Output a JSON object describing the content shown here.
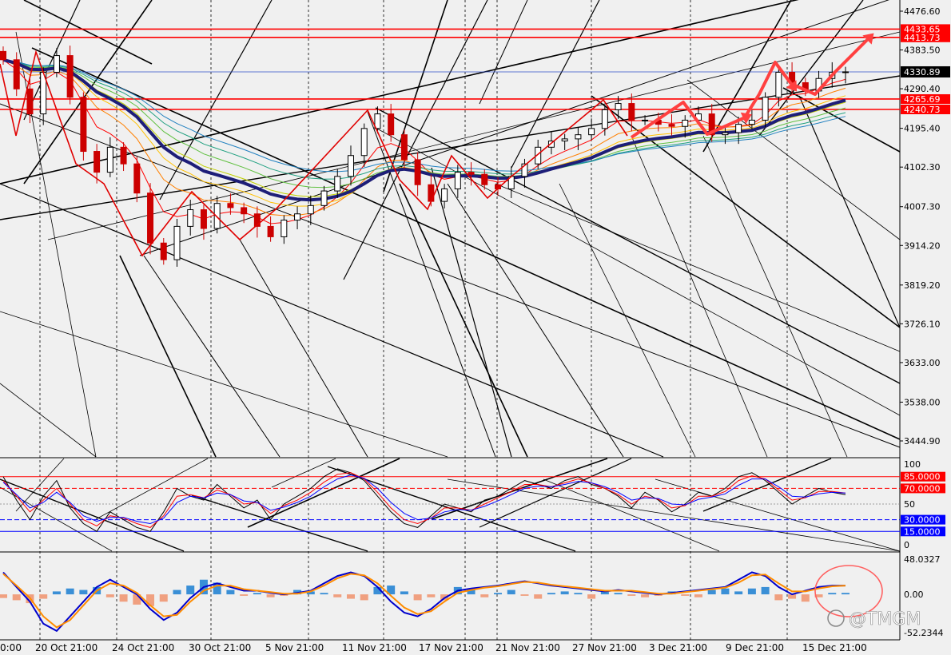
{
  "watermark": "@TMGM",
  "chart_data": [
    {
      "type": "candlestick",
      "panel": "price",
      "ylim": [
        3400,
        4500
      ],
      "y_ticks": [
        "4476.60",
        "4383.50",
        "4290.40",
        "4195.40",
        "4102.30",
        "4007.30",
        "3914.20",
        "3819.20",
        "3726.10",
        "3633.00",
        "3538.00",
        "3444.90"
      ],
      "x_ticks": [
        "20 Oct 21:00",
        "24 Oct 21:00",
        "30 Oct 21:00",
        "5 Nov 21:00",
        "11 Nov 21:00",
        "17 Nov 21:00",
        "21 Nov 21:00",
        "27 Nov 21:00",
        "3 Dec 21:00",
        "9 Dec 21:00",
        "15 Dec 21:00"
      ],
      "x_tick_start": "0:00",
      "horizontal_levels": [
        {
          "label": "4433.65",
          "value": 4433.65,
          "color": "#ff0000"
        },
        {
          "label": "4413.73",
          "value": 4413.73,
          "color": "#ff0000"
        },
        {
          "label": "4265.69",
          "value": 4265.69,
          "color": "#ff0000"
        },
        {
          "label": "4240.73",
          "value": 4240.73,
          "color": "#ff0000"
        }
      ],
      "current_price": {
        "label": "4330.89",
        "value": 4330.89
      },
      "close_series": [
        4360,
        4290,
        4230,
        4330,
        4370,
        4270,
        4140,
        4090,
        4150,
        4110,
        4040,
        3920,
        3880,
        3960,
        4000,
        3955,
        4015,
        4005,
        3990,
        3960,
        3935,
        3975,
        3990,
        4010,
        4045,
        4080,
        4130,
        4195,
        4230,
        4180,
        4120,
        4060,
        4020,
        4050,
        4090,
        4085,
        4060,
        4050,
        4080,
        4110,
        4150,
        4165,
        4170,
        4180,
        4195,
        4240,
        4255,
        4215,
        4215,
        4205,
        4200,
        4215,
        4230,
        4180,
        4185,
        4205,
        4215,
        4270,
        4330,
        4305,
        4285,
        4315,
        4330,
        4331
      ],
      "colors": {
        "up": "#000000",
        "down": "#cc0000",
        "ma_slow": "#1e1e78",
        "arrow": "#ff4040"
      }
    },
    {
      "type": "line",
      "panel": "stochastic",
      "ylim": [
        0,
        100
      ],
      "y_ticks": [
        "100",
        "50",
        "0"
      ],
      "levels": [
        {
          "label": "85.0000",
          "value": 85,
          "color": "#ff0000"
        },
        {
          "label": "70.0000",
          "value": 70,
          "color": "#ff0000"
        },
        {
          "label": "30.0000",
          "value": 30,
          "color": "#0000ff"
        },
        {
          "label": "15.0000",
          "value": 15,
          "color": "#0000ff"
        }
      ],
      "series": [
        {
          "values": [
            85,
            55,
            30,
            60,
            80,
            45,
            25,
            15,
            40,
            30,
            20,
            15,
            40,
            70,
            60,
            55,
            75,
            60,
            45,
            55,
            30,
            50,
            60,
            70,
            85,
            95,
            90,
            80,
            60,
            40,
            25,
            20,
            35,
            50,
            45,
            40,
            55,
            60,
            70,
            80,
            75,
            70,
            80,
            85,
            75,
            70,
            60,
            45,
            65,
            55,
            40,
            50,
            65,
            60,
            70,
            85,
            90,
            80,
            65,
            50,
            60,
            70,
            65,
            62
          ]
        },
        {
          "values": [
            80,
            60,
            40,
            55,
            70,
            50,
            30,
            22,
            35,
            32,
            25,
            20,
            35,
            60,
            62,
            58,
            68,
            62,
            50,
            52,
            38,
            48,
            55,
            65,
            78,
            88,
            90,
            82,
            65,
            45,
            30,
            25,
            32,
            45,
            45,
            42,
            50,
            58,
            66,
            75,
            75,
            72,
            77,
            82,
            77,
            70,
            62,
            50,
            60,
            56,
            45,
            48,
            60,
            60,
            66,
            80,
            86,
            82,
            68,
            55,
            58,
            66,
            66,
            64
          ]
        },
        {
          "values": [
            78,
            62,
            45,
            52,
            65,
            52,
            35,
            28,
            33,
            33,
            28,
            25,
            32,
            52,
            60,
            58,
            64,
            62,
            54,
            52,
            42,
            46,
            52,
            60,
            72,
            82,
            87,
            83,
            70,
            52,
            38,
            30,
            32,
            40,
            43,
            42,
            47,
            54,
            62,
            70,
            73,
            72,
            75,
            79,
            77,
            72,
            65,
            55,
            58,
            57,
            50,
            49,
            56,
            59,
            63,
            74,
            82,
            82,
            72,
            60,
            59,
            63,
            65,
            64
          ]
        }
      ],
      "colors": [
        "#000000",
        "#ff0000",
        "#0000ff"
      ]
    },
    {
      "type": "bar",
      "panel": "macd",
      "ylim": [
        -52.2344,
        48.0327
      ],
      "y_ticks": [
        "48.0327",
        "0.00",
        "-52.2344"
      ],
      "histogram": [
        -5,
        -8,
        -12,
        -6,
        4,
        8,
        6,
        10,
        -4,
        -10,
        -14,
        -16,
        -10,
        6,
        12,
        20,
        16,
        6,
        -2,
        2,
        -4,
        -2,
        6,
        4,
        2,
        -4,
        -6,
        -8,
        10,
        12,
        4,
        -8,
        -4,
        -8,
        10,
        8,
        -4,
        2,
        6,
        -2,
        -6,
        2,
        4,
        2,
        -6,
        6,
        2,
        -2,
        -4,
        -2,
        4,
        -2,
        -4,
        6,
        8,
        4,
        8,
        10,
        -8,
        -6,
        -10,
        -4,
        2,
        2
      ],
      "series": [
        {
          "values": [
            30,
            10,
            -10,
            -40,
            -50,
            -30,
            -10,
            10,
            20,
            10,
            0,
            -20,
            -35,
            -25,
            -5,
            10,
            15,
            10,
            5,
            5,
            2,
            0,
            2,
            5,
            15,
            25,
            30,
            25,
            10,
            -10,
            -25,
            -30,
            -20,
            -5,
            5,
            8,
            10,
            12,
            15,
            18,
            15,
            12,
            10,
            8,
            6,
            4,
            6,
            4,
            2,
            0,
            2,
            4,
            6,
            8,
            10,
            20,
            30,
            25,
            10,
            0,
            5,
            10,
            12,
            12
          ]
        },
        {
          "values": [
            28,
            12,
            -5,
            -30,
            -45,
            -35,
            -15,
            5,
            15,
            12,
            2,
            -15,
            -30,
            -28,
            -10,
            5,
            12,
            12,
            7,
            5,
            3,
            1,
            1,
            4,
            12,
            22,
            28,
            26,
            15,
            -2,
            -18,
            -27,
            -23,
            -10,
            2,
            6,
            9,
            11,
            14,
            17,
            16,
            13,
            11,
            9,
            7,
            5,
            5,
            5,
            3,
            1,
            1,
            3,
            5,
            7,
            9,
            16,
            26,
            27,
            15,
            4,
            4,
            8,
            11,
            12
          ]
        }
      ],
      "colors": {
        "hist_pos": "#3a8fd6",
        "hist_neg": "#f0a080",
        "macd": "#0000cc",
        "signal": "#ff8c00"
      }
    }
  ]
}
